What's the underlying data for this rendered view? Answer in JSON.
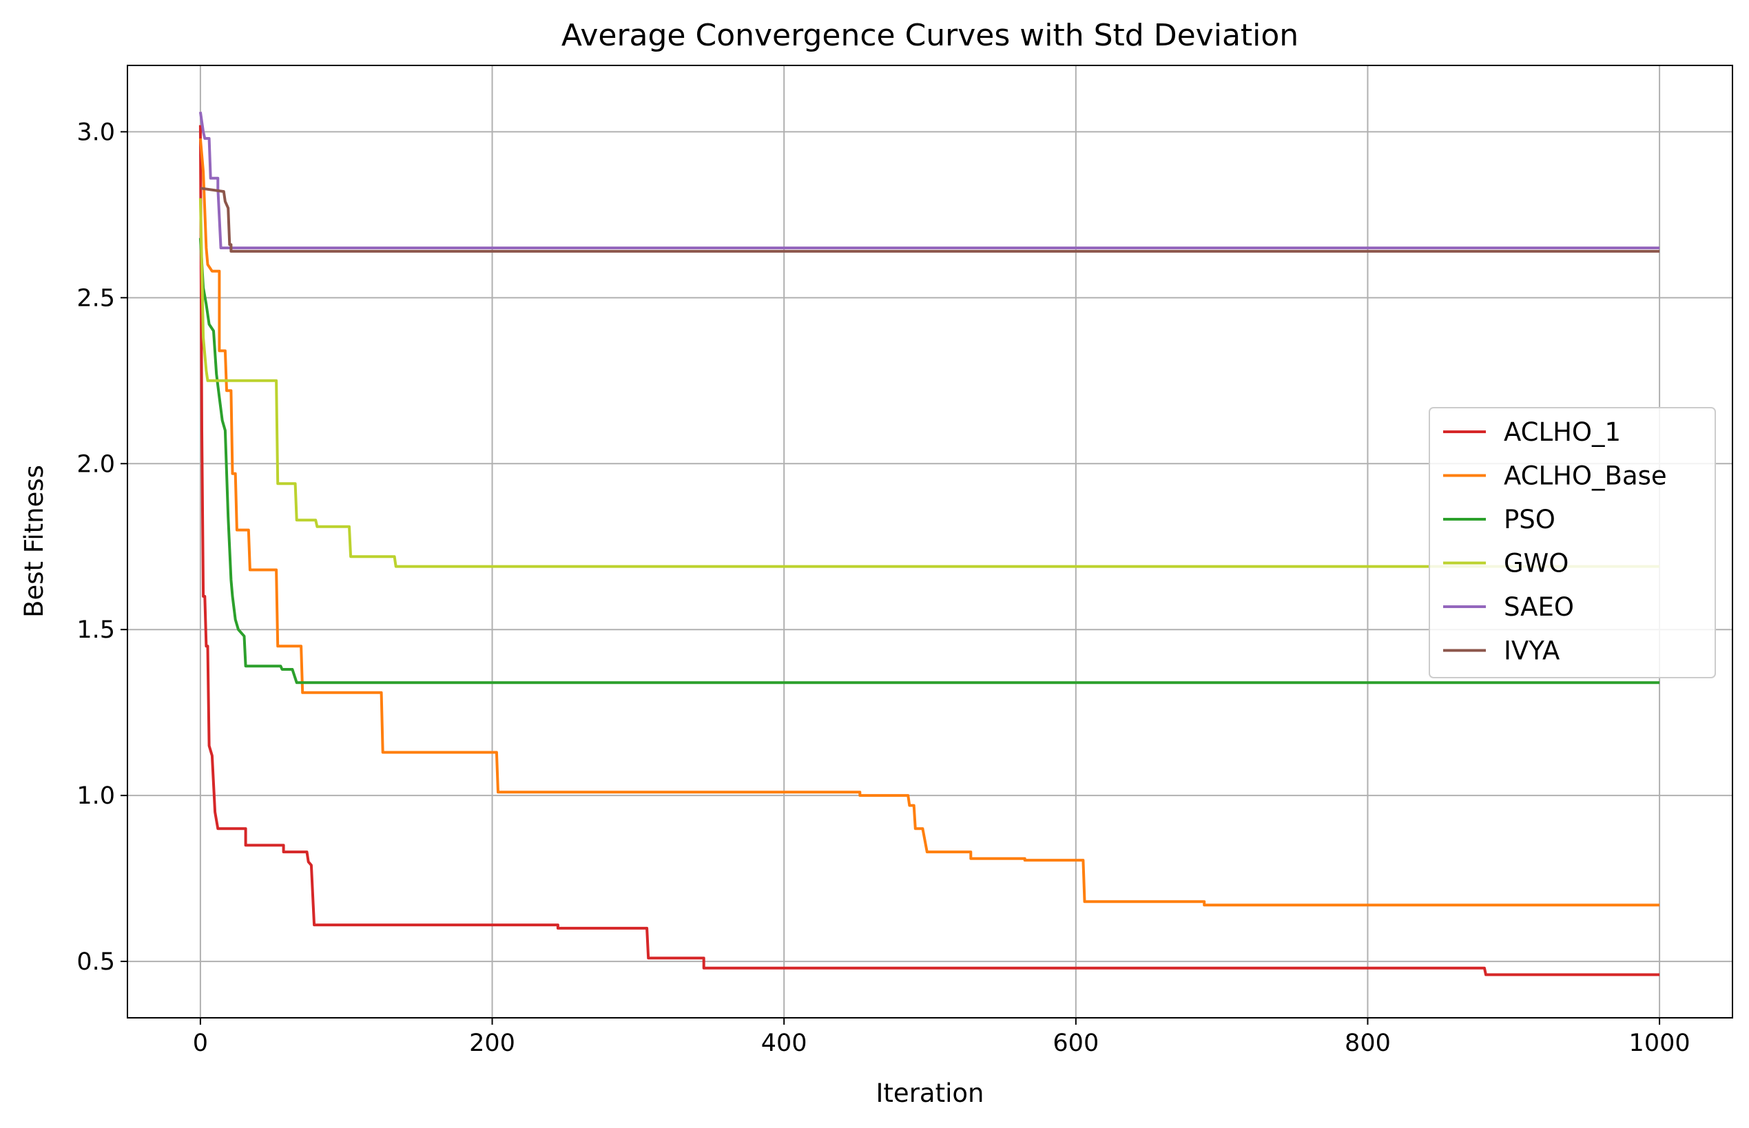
{
  "chart_data": {
    "type": "line",
    "title": "Average Convergence Curves with Std Deviation",
    "xlabel": "Iteration",
    "ylabel": "Best Fitness",
    "xlim": [
      -50,
      1050
    ],
    "ylim": [
      0.33,
      3.2
    ],
    "xticks": [
      0,
      200,
      400,
      600,
      800,
      1000
    ],
    "yticks": [
      0.5,
      1.0,
      1.5,
      2.0,
      2.5,
      3.0
    ],
    "xtick_labels": [
      "0",
      "200",
      "400",
      "600",
      "800",
      "1000"
    ],
    "ytick_labels": [
      "0.5",
      "1.0",
      "1.5",
      "2.0",
      "2.5",
      "3.0"
    ],
    "grid": true,
    "legend_position": "center-right",
    "series": [
      {
        "name": "ACLHO_1",
        "color": "#d62728",
        "points": [
          [
            0,
            3.02
          ],
          [
            1,
            2.1
          ],
          [
            2,
            1.6
          ],
          [
            3,
            1.6
          ],
          [
            4,
            1.45
          ],
          [
            5,
            1.45
          ],
          [
            6,
            1.15
          ],
          [
            8,
            1.12
          ],
          [
            10,
            0.95
          ],
          [
            12,
            0.9
          ],
          [
            31,
            0.9
          ],
          [
            31,
            0.85
          ],
          [
            57,
            0.85
          ],
          [
            57,
            0.83
          ],
          [
            73,
            0.83
          ],
          [
            74,
            0.8
          ],
          [
            76,
            0.79
          ],
          [
            78,
            0.61
          ],
          [
            245,
            0.61
          ],
          [
            245,
            0.6
          ],
          [
            306,
            0.6
          ],
          [
            307,
            0.51
          ],
          [
            345,
            0.51
          ],
          [
            345,
            0.48
          ],
          [
            880,
            0.48
          ],
          [
            881,
            0.46
          ],
          [
            1000,
            0.46
          ]
        ]
      },
      {
        "name": "ACLHO_Base",
        "color": "#ff7f0e",
        "points": [
          [
            0,
            2.98
          ],
          [
            2,
            2.88
          ],
          [
            4,
            2.65
          ],
          [
            5,
            2.6
          ],
          [
            8,
            2.58
          ],
          [
            13,
            2.58
          ],
          [
            13,
            2.34
          ],
          [
            17,
            2.34
          ],
          [
            18,
            2.22
          ],
          [
            21,
            2.22
          ],
          [
            22,
            1.97
          ],
          [
            24,
            1.97
          ],
          [
            25,
            1.8
          ],
          [
            33,
            1.8
          ],
          [
            34,
            1.68
          ],
          [
            52,
            1.68
          ],
          [
            53,
            1.45
          ],
          [
            69,
            1.45
          ],
          [
            70,
            1.31
          ],
          [
            124,
            1.31
          ],
          [
            125,
            1.13
          ],
          [
            203,
            1.13
          ],
          [
            204,
            1.01
          ],
          [
            452,
            1.01
          ],
          [
            452,
            1.0
          ],
          [
            485,
            1.0
          ],
          [
            486,
            0.97
          ],
          [
            489,
            0.97
          ],
          [
            490,
            0.9
          ],
          [
            495,
            0.9
          ],
          [
            498,
            0.83
          ],
          [
            528,
            0.83
          ],
          [
            528,
            0.81
          ],
          [
            565,
            0.81
          ],
          [
            565,
            0.805
          ],
          [
            605,
            0.805
          ],
          [
            606,
            0.68
          ],
          [
            688,
            0.68
          ],
          [
            688,
            0.67
          ],
          [
            1000,
            0.67
          ]
        ]
      },
      {
        "name": "PSO",
        "color": "#2ca02c",
        "points": [
          [
            0,
            2.68
          ],
          [
            2,
            2.53
          ],
          [
            4,
            2.48
          ],
          [
            6,
            2.42
          ],
          [
            9,
            2.4
          ],
          [
            11,
            2.27
          ],
          [
            13,
            2.2
          ],
          [
            15,
            2.13
          ],
          [
            17,
            2.1
          ],
          [
            19,
            1.84
          ],
          [
            21,
            1.65
          ],
          [
            22,
            1.6
          ],
          [
            24,
            1.53
          ],
          [
            26,
            1.5
          ],
          [
            30,
            1.48
          ],
          [
            31,
            1.39
          ],
          [
            55,
            1.39
          ],
          [
            56,
            1.38
          ],
          [
            63,
            1.38
          ],
          [
            66,
            1.34
          ],
          [
            1000,
            1.34
          ]
        ]
      },
      {
        "name": "GWO",
        "color": "#bcd22e",
        "points": [
          [
            0,
            2.8
          ],
          [
            2,
            2.38
          ],
          [
            4,
            2.28
          ],
          [
            5,
            2.25
          ],
          [
            52,
            2.25
          ],
          [
            53,
            1.94
          ],
          [
            65,
            1.94
          ],
          [
            66,
            1.83
          ],
          [
            79,
            1.83
          ],
          [
            80,
            1.81
          ],
          [
            102,
            1.81
          ],
          [
            103,
            1.72
          ],
          [
            133,
            1.72
          ],
          [
            134,
            1.69
          ],
          [
            1000,
            1.69
          ]
        ]
      },
      {
        "name": "SAEO",
        "color": "#9467bd",
        "points": [
          [
            0,
            3.06
          ],
          [
            2,
            3.0
          ],
          [
            3,
            2.98
          ],
          [
            6,
            2.98
          ],
          [
            7,
            2.86
          ],
          [
            12,
            2.86
          ],
          [
            12,
            2.83
          ],
          [
            14,
            2.65
          ],
          [
            1000,
            2.65
          ]
        ]
      },
      {
        "name": "IVYA",
        "color": "#8c564b",
        "points": [
          [
            0,
            2.83
          ],
          [
            16,
            2.82
          ],
          [
            17,
            2.79
          ],
          [
            19,
            2.77
          ],
          [
            20,
            2.66
          ],
          [
            21,
            2.66
          ],
          [
            21,
            2.64
          ],
          [
            1000,
            2.64
          ]
        ]
      }
    ]
  }
}
